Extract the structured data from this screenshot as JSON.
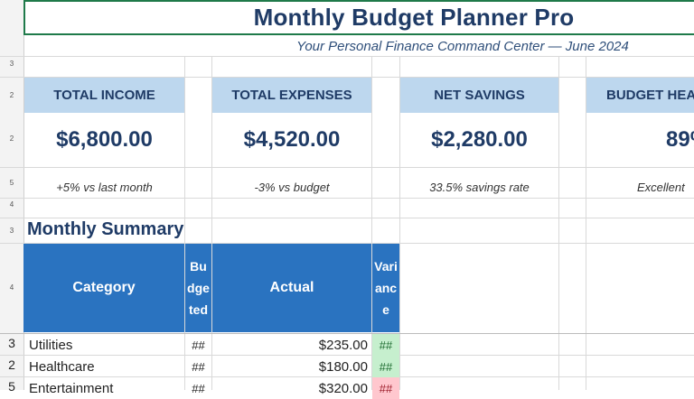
{
  "title": "Monthly Budget Planner Pro",
  "subtitle": "Your Personal Finance Command Center — June 2024",
  "row_numbers": {
    "r1": "3",
    "r2": "2",
    "r3": "2",
    "r4": "5",
    "r5": "4",
    "r6": "3",
    "r7": "4"
  },
  "kpis": [
    {
      "label": "TOTAL INCOME",
      "value": "$6,800.00",
      "note": "+5% vs last month"
    },
    {
      "label": "TOTAL EXPENSES",
      "value": "$4,520.00",
      "note": "-3% vs budget"
    },
    {
      "label": "NET SAVINGS",
      "value": "$2,280.00",
      "note": "33.5% savings rate"
    },
    {
      "label": "BUDGET HEA",
      "value": "89%",
      "note": "Excellent"
    }
  ],
  "summary": {
    "title": "Monthly Summary",
    "headers": {
      "category": "Category",
      "budgeted": "Budgeted",
      "actual": "Actual",
      "variance": "Variance"
    },
    "rows": [
      {
        "row": "3",
        "category": "Utilities",
        "budgeted": "##",
        "actual": "$235.00",
        "variance": "##",
        "status": "good"
      },
      {
        "row": "2",
        "category": "Healthcare",
        "budgeted": "##",
        "actual": "$180.00",
        "variance": "##",
        "status": "good"
      },
      {
        "row": "5",
        "category": "Entertainment",
        "budgeted": "##",
        "actual": "$320.00",
        "variance": "##",
        "status": "bad"
      }
    ]
  },
  "colors": {
    "header_dark": "#2a73c0",
    "header_light": "#bdd7ee",
    "title": "#1f3b66",
    "good": "#c6efce",
    "bad": "#ffc7ce"
  }
}
